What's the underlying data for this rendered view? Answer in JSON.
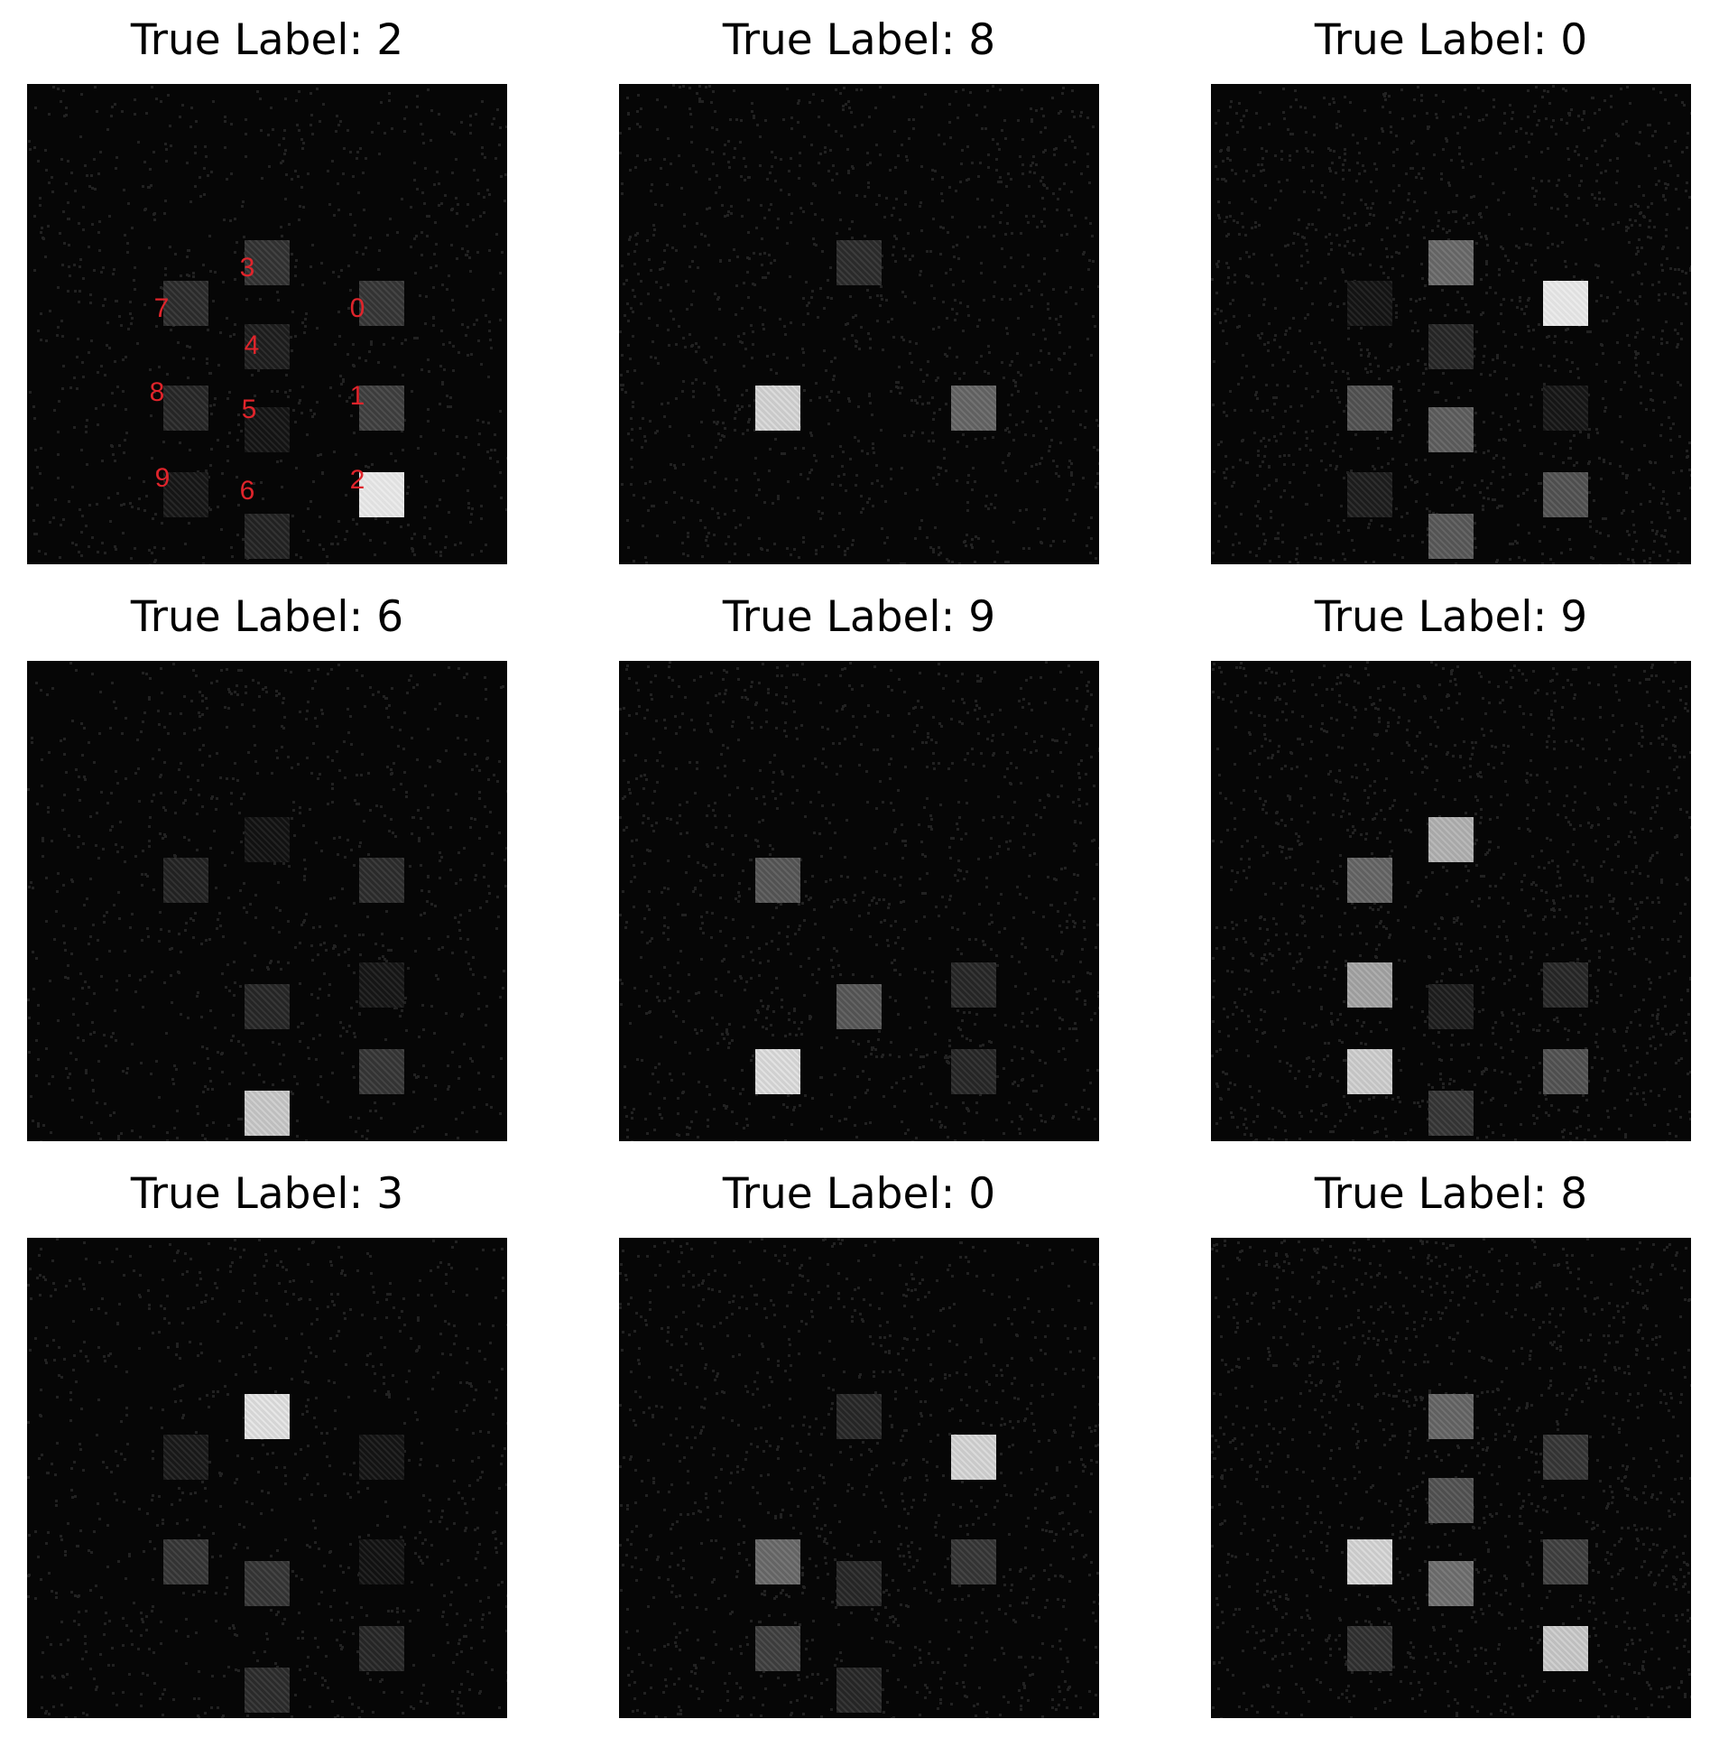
{
  "title_prefix": "True Label: ",
  "detector_label_color": "#e0242b",
  "panels": [
    {
      "label": "2",
      "title": "True Label: 2",
      "annotated": true,
      "intensities": [
        0.18,
        0.22,
        0.95,
        0.17,
        0.08,
        0.04,
        0.1,
        0.14,
        0.12,
        0.05
      ]
    },
    {
      "label": "8",
      "title": "True Label: 8",
      "annotated": false,
      "intensities": [
        0.0,
        0.38,
        0.0,
        0.14,
        0.0,
        0.0,
        0.0,
        0.0,
        0.85,
        0.0
      ]
    },
    {
      "label": "0",
      "title": "True Label: 0",
      "annotated": false,
      "intensities": [
        0.95,
        0.05,
        0.3,
        0.4,
        0.12,
        0.35,
        0.33,
        0.04,
        0.3,
        0.08
      ]
    },
    {
      "label": "6",
      "title": "True Label: 6",
      "annotated": false,
      "intensities": [
        0.14,
        0.05,
        0.18,
        0.03,
        0.0,
        0.12,
        0.8,
        0.1,
        0.0,
        0.0
      ]
    },
    {
      "label": "9",
      "title": "True Label: 9",
      "annotated": false,
      "intensities": [
        0.0,
        0.12,
        0.12,
        0.0,
        0.0,
        0.32,
        0.0,
        0.32,
        0.0,
        0.88
      ]
    },
    {
      "label": "9",
      "title": "True Label: 9",
      "annotated": false,
      "intensities": [
        0.0,
        0.12,
        0.3,
        0.7,
        0.0,
        0.08,
        0.18,
        0.38,
        0.65,
        0.82
      ]
    },
    {
      "label": "3",
      "title": "True Label: 3",
      "annotated": false,
      "intensities": [
        0.04,
        0.03,
        0.12,
        0.9,
        0.0,
        0.18,
        0.14,
        0.06,
        0.18,
        0.0
      ]
    },
    {
      "label": "0",
      "title": "True Label: 0",
      "annotated": false,
      "intensities": [
        0.85,
        0.18,
        0.0,
        0.12,
        0.0,
        0.12,
        0.12,
        0.0,
        0.4,
        0.22
      ]
    },
    {
      "label": "8",
      "title": "True Label: 8",
      "annotated": false,
      "intensities": [
        0.18,
        0.22,
        0.8,
        0.38,
        0.3,
        0.42,
        0.0,
        0.0,
        0.85,
        0.16
      ]
    }
  ],
  "detectors": [
    {
      "digit": "0",
      "label": "0"
    },
    {
      "digit": "1",
      "label": "1"
    },
    {
      "digit": "2",
      "label": "2"
    },
    {
      "digit": "3",
      "label": "3"
    },
    {
      "digit": "4",
      "label": "4"
    },
    {
      "digit": "5",
      "label": "5"
    },
    {
      "digit": "6",
      "label": "6"
    },
    {
      "digit": "7",
      "label": "7"
    },
    {
      "digit": "8",
      "label": "8"
    },
    {
      "digit": "9",
      "label": "9"
    }
  ]
}
